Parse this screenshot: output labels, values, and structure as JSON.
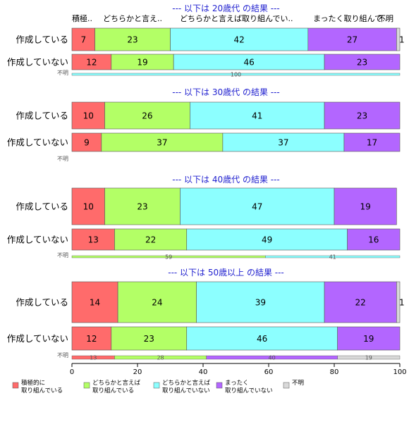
{
  "chart_data": {
    "type": "bar",
    "orientation": "horizontal",
    "stacked": "percent",
    "xlim": [
      0,
      100
    ],
    "xticks": [
      0,
      20,
      40,
      60,
      80,
      100
    ],
    "categories_header": [
      "積極..",
      "どちらかと言え..",
      "どちらかと言えば取り組んでい..",
      "まったく取り組んで..",
      "不明"
    ],
    "series_names": [
      "積極的に\n取り組んでいる",
      "どちらかと言えば\n取り組んでいる",
      "どちらかと言えば\n取り組んでいない",
      "まったく\n取り組んでいない",
      "不明"
    ],
    "colors": [
      "#ff6b6b",
      "#b3ff66",
      "#8cffff",
      "#b366ff",
      "#d9d9d9"
    ],
    "panels": [
      {
        "title": "--- 以下は 20歳代 の結果 ---",
        "rows": [
          {
            "label": "作成している",
            "values": [
              7,
              23,
              42,
              27,
              1
            ]
          },
          {
            "label": "作成していない",
            "values": [
              12,
              19,
              46,
              23,
              0
            ]
          },
          {
            "label": "不明",
            "values": [
              0,
              0,
              100,
              0,
              0
            ]
          }
        ]
      },
      {
        "title": "--- 以下は 30歳代 の結果 ---",
        "rows": [
          {
            "label": "作成している",
            "values": [
              10,
              26,
              41,
              23,
              0
            ]
          },
          {
            "label": "作成していない",
            "values": [
              9,
              37,
              37,
              17,
              0
            ]
          },
          {
            "label": "不明",
            "values": [
              0,
              0,
              0,
              0,
              0
            ]
          }
        ]
      },
      {
        "title": "--- 以下は 40歳代 の結果 ---",
        "rows": [
          {
            "label": "作成している",
            "values": [
              10,
              23,
              47,
              19,
              0
            ]
          },
          {
            "label": "作成していない",
            "values": [
              13,
              22,
              49,
              16,
              0
            ]
          },
          {
            "label": "不明",
            "values": [
              0,
              59,
              41,
              0,
              0
            ]
          }
        ]
      },
      {
        "title": "--- 以下は 50歳以上 の結果 ---",
        "rows": [
          {
            "label": "作成している",
            "values": [
              14,
              24,
              39,
              22,
              1
            ]
          },
          {
            "label": "作成していない",
            "values": [
              12,
              23,
              46,
              19,
              0
            ]
          },
          {
            "label": "不明",
            "values": [
              13,
              28,
              0,
              40,
              19
            ]
          }
        ]
      }
    ]
  }
}
